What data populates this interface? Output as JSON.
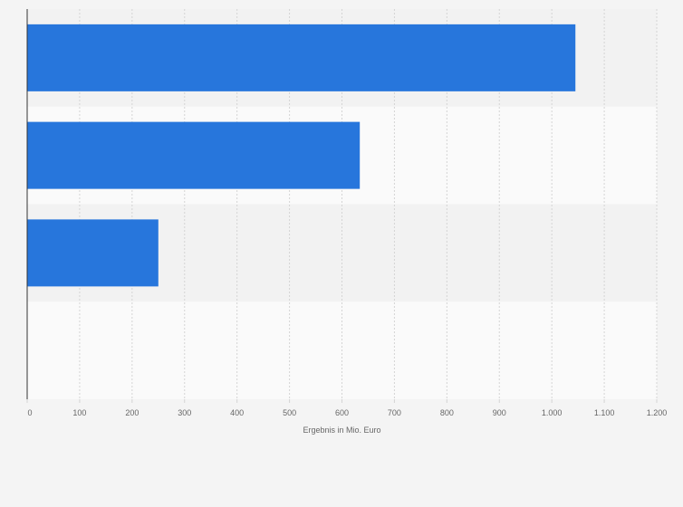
{
  "chart_data": {
    "type": "bar",
    "orientation": "horizontal",
    "categories": [
      "",
      "",
      "",
      ""
    ],
    "values": [
      1045,
      634,
      250,
      null
    ],
    "xlabel": "Ergebnis in Mio. Euro",
    "ylabel": "",
    "xlim": [
      0,
      1200
    ],
    "ticks": [
      0,
      100,
      200,
      300,
      400,
      500,
      600,
      700,
      800,
      900,
      1000,
      1100,
      1200
    ],
    "tick_labels": [
      "0",
      "100",
      "200",
      "300",
      "400",
      "500",
      "600",
      "700",
      "800",
      "900",
      "1.000",
      "1.100",
      "1.200"
    ],
    "grid": true,
    "legend": "none",
    "colors": {
      "bar": "#2776dc",
      "band_dark": "#f2f2f2",
      "band_light": "#fafafa",
      "grid": "#d4d4d4",
      "axis": "#333333",
      "text": "#666666",
      "background": "#f4f4f4"
    }
  }
}
